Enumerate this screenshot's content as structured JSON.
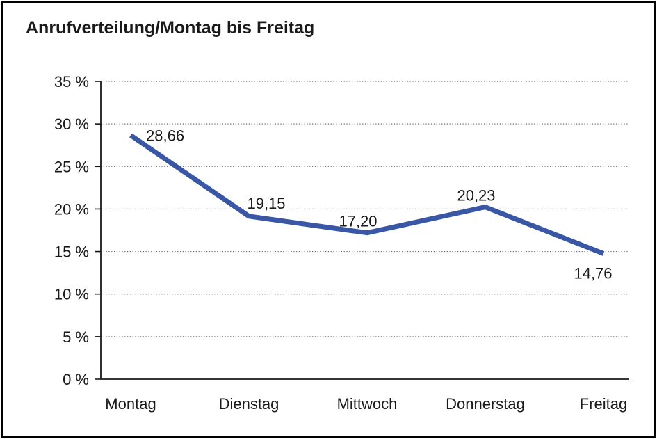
{
  "chart_data": {
    "type": "line",
    "title": "Anrufverteilung/Montag bis Freitag",
    "categories": [
      "Montag",
      "Dienstag",
      "Mittwoch",
      "Donnerstag",
      "Freitag"
    ],
    "series": [
      {
        "name": "Anrufverteilung",
        "values": [
          28.66,
          19.15,
          17.2,
          20.23,
          14.76
        ]
      }
    ],
    "point_labels": [
      "28,66",
      "19,15",
      "17,20",
      "20,23",
      "14,76"
    ],
    "y_tick_labels": [
      "0 %",
      "5 %",
      "10 %",
      "15 %",
      "20 %",
      "25 %",
      "30 %",
      "35 %"
    ],
    "ylim": [
      0,
      35
    ],
    "y_tick_step": 5,
    "xlabel": "",
    "ylabel": "",
    "legend": "none",
    "grid": "horizontal-dotted",
    "colors": {
      "line": "#3A57A5",
      "text": "#1A1A1A",
      "grid": "#666666",
      "axis": "#1A1A1A",
      "frame_border": "#000000",
      "background": "#FFFFFF"
    }
  }
}
